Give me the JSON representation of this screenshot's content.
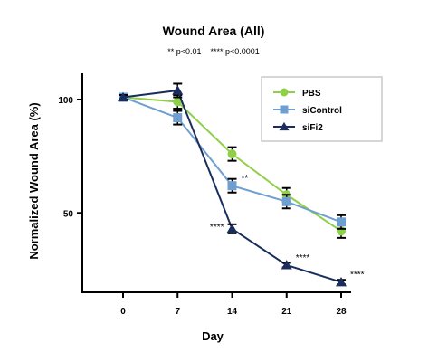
{
  "chart_data": {
    "type": "line",
    "title": "Wound Area (All)",
    "subtitle": "** p<0.01    **** p<0.0001",
    "xlabel": "Day",
    "ylabel": "Normalized Wound Area (%)",
    "x": [
      0,
      7,
      14,
      21,
      28
    ],
    "xticks": [
      "0",
      "7",
      "14",
      "21",
      "28"
    ],
    "yticks": [
      50,
      100
    ],
    "ylim": [
      15,
      115
    ],
    "xlim": [
      -5,
      30
    ],
    "legend_position": "top-right",
    "series": [
      {
        "name": "PBS",
        "color": "#8fcf4a",
        "marker": "circle",
        "values": [
          101,
          99,
          76,
          58,
          42
        ],
        "errors": [
          1,
          3,
          3,
          3,
          3
        ]
      },
      {
        "name": "siControl",
        "color": "#6f9fd1",
        "marker": "square",
        "values": [
          101,
          92,
          62,
          55,
          46
        ],
        "errors": [
          1,
          3,
          3,
          3,
          3
        ]
      },
      {
        "name": "siFi2",
        "color": "#1a2e5e",
        "marker": "triangle",
        "values": [
          101,
          104,
          43,
          27,
          19.5
        ],
        "errors": [
          1,
          3,
          2,
          1,
          1
        ]
      }
    ],
    "annotations": [
      {
        "x": 14,
        "y": 62,
        "text": "**",
        "anchor": "start"
      },
      {
        "x": 14,
        "y": 43,
        "text": "****",
        "anchor": "end"
      },
      {
        "x": 21,
        "y": 27,
        "text": "****",
        "anchor": "start"
      },
      {
        "x": 28,
        "y": 19.5,
        "text": "****",
        "anchor": "start"
      }
    ]
  }
}
